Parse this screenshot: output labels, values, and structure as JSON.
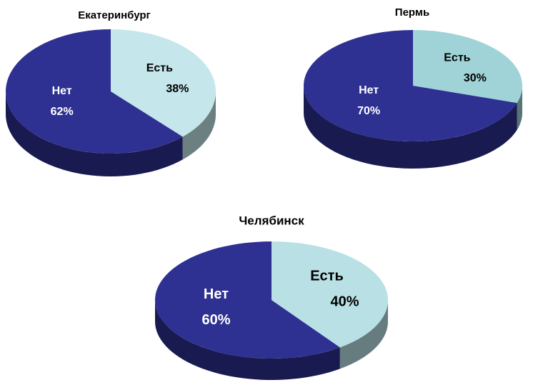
{
  "chart_data": [
    {
      "type": "pie",
      "title": "Екатеринбург",
      "categories": [
        "Есть",
        "Нет"
      ],
      "values": [
        38,
        62
      ],
      "value_labels": [
        "38%",
        "62%"
      ],
      "colors": [
        "#c5e6ea",
        "#2e3192"
      ]
    },
    {
      "type": "pie",
      "title": "Пермь",
      "categories": [
        "Есть",
        "Нет"
      ],
      "values": [
        30,
        70
      ],
      "value_labels": [
        "30%",
        "70%"
      ],
      "colors": [
        "#9fd3d7",
        "#2e3192"
      ]
    },
    {
      "type": "pie",
      "title": "Челябинск",
      "categories": [
        "Есть",
        "Нет"
      ],
      "values": [
        40,
        60
      ],
      "value_labels": [
        "40%",
        "60%"
      ],
      "colors": [
        "#b9e1e5",
        "#2e3192"
      ]
    }
  ]
}
